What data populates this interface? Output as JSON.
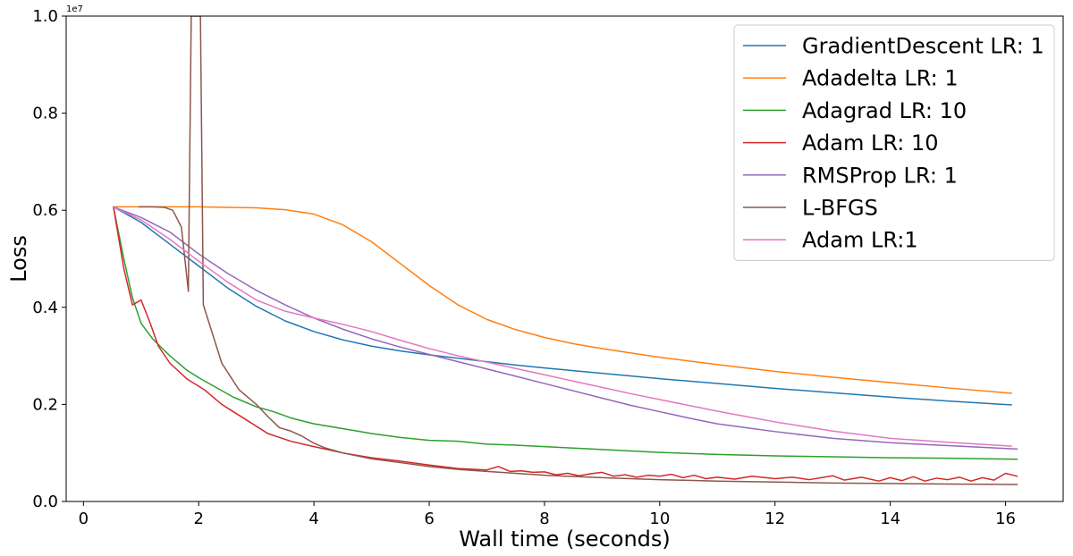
{
  "chart_data": {
    "type": "line",
    "xlabel": "Wall time (seconds)",
    "ylabel": "Loss",
    "y_offset_label": "1e7",
    "xlim": [
      -0.3,
      17.0
    ],
    "ylim": [
      0,
      1.0
    ],
    "x_ticks": [
      0,
      2,
      4,
      6,
      8,
      10,
      12,
      14,
      16
    ],
    "x_tick_labels": [
      "0",
      "2",
      "4",
      "6",
      "8",
      "10",
      "12",
      "14",
      "16"
    ],
    "y_ticks": [
      0.0,
      0.2,
      0.4,
      0.6,
      0.8,
      1.0
    ],
    "y_tick_labels": [
      "0.0",
      "0.2",
      "0.4",
      "0.6",
      "0.8",
      "1.0"
    ],
    "grid": false,
    "legend_position": "top-right",
    "series": [
      {
        "name": "GradientDescent LR: 1",
        "color": "#1f77b4",
        "points": [
          [
            0.52,
            0.607
          ],
          [
            1.0,
            0.575
          ],
          [
            1.5,
            0.53
          ],
          [
            2.0,
            0.485
          ],
          [
            2.5,
            0.44
          ],
          [
            3.0,
            0.402
          ],
          [
            3.5,
            0.372
          ],
          [
            4.0,
            0.35
          ],
          [
            4.5,
            0.333
          ],
          [
            5.0,
            0.32
          ],
          [
            5.5,
            0.31
          ],
          [
            6.0,
            0.302
          ],
          [
            6.5,
            0.295
          ],
          [
            7.0,
            0.288
          ],
          [
            7.5,
            0.281
          ],
          [
            8.0,
            0.275
          ],
          [
            9.0,
            0.264
          ],
          [
            10.0,
            0.253
          ],
          [
            11.0,
            0.243
          ],
          [
            12.0,
            0.233
          ],
          [
            13.0,
            0.224
          ],
          [
            14.0,
            0.215
          ],
          [
            15.0,
            0.207
          ],
          [
            16.1,
            0.199
          ]
        ]
      },
      {
        "name": "Adadelta LR: 1",
        "color": "#ff7f0e",
        "points": [
          [
            0.52,
            0.607
          ],
          [
            1.0,
            0.607
          ],
          [
            2.0,
            0.607
          ],
          [
            2.5,
            0.606
          ],
          [
            3.0,
            0.605
          ],
          [
            3.5,
            0.601
          ],
          [
            4.0,
            0.592
          ],
          [
            4.5,
            0.57
          ],
          [
            5.0,
            0.535
          ],
          [
            5.5,
            0.49
          ],
          [
            6.0,
            0.445
          ],
          [
            6.5,
            0.405
          ],
          [
            7.0,
            0.375
          ],
          [
            7.5,
            0.354
          ],
          [
            8.0,
            0.338
          ],
          [
            8.5,
            0.325
          ],
          [
            9.0,
            0.315
          ],
          [
            10.0,
            0.297
          ],
          [
            11.0,
            0.282
          ],
          [
            12.0,
            0.268
          ],
          [
            13.0,
            0.256
          ],
          [
            14.0,
            0.245
          ],
          [
            15.0,
            0.234
          ],
          [
            16.1,
            0.223
          ]
        ]
      },
      {
        "name": "Adagrad LR: 10",
        "color": "#2ca02c",
        "points": [
          [
            0.52,
            0.607
          ],
          [
            0.7,
            0.5
          ],
          [
            0.85,
            0.42
          ],
          [
            1.0,
            0.367
          ],
          [
            1.2,
            0.335
          ],
          [
            1.5,
            0.3
          ],
          [
            1.8,
            0.27
          ],
          [
            2.0,
            0.255
          ],
          [
            2.3,
            0.235
          ],
          [
            2.6,
            0.215
          ],
          [
            3.0,
            0.195
          ],
          [
            3.3,
            0.185
          ],
          [
            3.6,
            0.172
          ],
          [
            4.0,
            0.16
          ],
          [
            4.5,
            0.15
          ],
          [
            5.0,
            0.14
          ],
          [
            5.5,
            0.132
          ],
          [
            6.0,
            0.126
          ],
          [
            6.5,
            0.124
          ],
          [
            7.0,
            0.118
          ],
          [
            7.5,
            0.116
          ],
          [
            8.0,
            0.113
          ],
          [
            8.5,
            0.11
          ],
          [
            9.0,
            0.107
          ],
          [
            10.0,
            0.101
          ],
          [
            11.0,
            0.097
          ],
          [
            12.0,
            0.094
          ],
          [
            13.0,
            0.092
          ],
          [
            14.0,
            0.09
          ],
          [
            15.0,
            0.089
          ],
          [
            16.2,
            0.087
          ]
        ]
      },
      {
        "name": "Adam LR: 10",
        "color": "#d62728",
        "points": [
          [
            0.52,
            0.607
          ],
          [
            0.7,
            0.48
          ],
          [
            0.85,
            0.405
          ],
          [
            1.0,
            0.415
          ],
          [
            1.15,
            0.37
          ],
          [
            1.3,
            0.32
          ],
          [
            1.5,
            0.285
          ],
          [
            1.8,
            0.252
          ],
          [
            2.1,
            0.23
          ],
          [
            2.4,
            0.2
          ],
          [
            2.8,
            0.17
          ],
          [
            3.2,
            0.14
          ],
          [
            3.6,
            0.124
          ],
          [
            4.0,
            0.113
          ],
          [
            4.5,
            0.1
          ],
          [
            5.0,
            0.09
          ],
          [
            5.5,
            0.083
          ],
          [
            6.0,
            0.075
          ],
          [
            6.5,
            0.068
          ],
          [
            7.0,
            0.065
          ],
          [
            7.2,
            0.072
          ],
          [
            7.4,
            0.062
          ],
          [
            7.6,
            0.063
          ],
          [
            7.8,
            0.06
          ],
          [
            8.0,
            0.061
          ],
          [
            8.2,
            0.055
          ],
          [
            8.4,
            0.058
          ],
          [
            8.6,
            0.053
          ],
          [
            8.8,
            0.057
          ],
          [
            9.0,
            0.06
          ],
          [
            9.2,
            0.052
          ],
          [
            9.4,
            0.055
          ],
          [
            9.6,
            0.05
          ],
          [
            9.8,
            0.054
          ],
          [
            10.0,
            0.052
          ],
          [
            10.2,
            0.056
          ],
          [
            10.4,
            0.049
          ],
          [
            10.6,
            0.054
          ],
          [
            10.8,
            0.047
          ],
          [
            11.0,
            0.05
          ],
          [
            11.3,
            0.046
          ],
          [
            11.6,
            0.052
          ],
          [
            12.0,
            0.047
          ],
          [
            12.3,
            0.05
          ],
          [
            12.6,
            0.045
          ],
          [
            13.0,
            0.053
          ],
          [
            13.2,
            0.044
          ],
          [
            13.5,
            0.05
          ],
          [
            13.8,
            0.042
          ],
          [
            14.0,
            0.049
          ],
          [
            14.2,
            0.043
          ],
          [
            14.4,
            0.051
          ],
          [
            14.6,
            0.042
          ],
          [
            14.8,
            0.048
          ],
          [
            15.0,
            0.045
          ],
          [
            15.2,
            0.05
          ],
          [
            15.4,
            0.042
          ],
          [
            15.6,
            0.049
          ],
          [
            15.8,
            0.044
          ],
          [
            16.0,
            0.058
          ],
          [
            16.2,
            0.052
          ]
        ]
      },
      {
        "name": "RMSProp LR: 1",
        "color": "#9467bd",
        "points": [
          [
            0.52,
            0.607
          ],
          [
            1.0,
            0.585
          ],
          [
            1.5,
            0.555
          ],
          [
            2.0,
            0.51
          ],
          [
            2.5,
            0.47
          ],
          [
            3.0,
            0.435
          ],
          [
            3.5,
            0.405
          ],
          [
            4.0,
            0.378
          ],
          [
            4.5,
            0.355
          ],
          [
            5.0,
            0.335
          ],
          [
            5.5,
            0.318
          ],
          [
            6.0,
            0.303
          ],
          [
            6.5,
            0.288
          ],
          [
            7.0,
            0.273
          ],
          [
            7.5,
            0.258
          ],
          [
            8.0,
            0.243
          ],
          [
            8.5,
            0.228
          ],
          [
            9.0,
            0.213
          ],
          [
            9.5,
            0.198
          ],
          [
            10.0,
            0.185
          ],
          [
            10.5,
            0.172
          ],
          [
            11.0,
            0.16
          ],
          [
            11.5,
            0.152
          ],
          [
            12.0,
            0.144
          ],
          [
            13.0,
            0.13
          ],
          [
            14.0,
            0.121
          ],
          [
            15.0,
            0.115
          ],
          [
            16.2,
            0.108
          ]
        ]
      },
      {
        "name": "L-BFGS",
        "color": "#8c564b",
        "points": [
          [
            0.97,
            0.607
          ],
          [
            1.2,
            0.607
          ],
          [
            1.4,
            0.606
          ],
          [
            1.55,
            0.6
          ],
          [
            1.7,
            0.565
          ],
          [
            1.82,
            0.433
          ],
          [
            1.87,
            1.0
          ],
          [
            1.93,
            1.0
          ],
          [
            2.03,
            1.0
          ],
          [
            2.08,
            0.405
          ],
          [
            2.2,
            0.36
          ],
          [
            2.4,
            0.285
          ],
          [
            2.7,
            0.23
          ],
          [
            3.0,
            0.2
          ],
          [
            3.2,
            0.175
          ],
          [
            3.4,
            0.152
          ],
          [
            3.6,
            0.145
          ],
          [
            3.8,
            0.134
          ],
          [
            4.0,
            0.12
          ],
          [
            4.2,
            0.11
          ],
          [
            4.5,
            0.1
          ],
          [
            5.0,
            0.088
          ],
          [
            5.5,
            0.08
          ],
          [
            6.0,
            0.072
          ],
          [
            6.5,
            0.066
          ],
          [
            7.0,
            0.062
          ],
          [
            7.5,
            0.058
          ],
          [
            8.0,
            0.054
          ],
          [
            9.0,
            0.049
          ],
          [
            10.0,
            0.045
          ],
          [
            11.0,
            0.042
          ],
          [
            12.0,
            0.04
          ],
          [
            13.0,
            0.038
          ],
          [
            14.0,
            0.037
          ],
          [
            15.0,
            0.036
          ],
          [
            16.2,
            0.035
          ]
        ]
      },
      {
        "name": "Adam LR:1",
        "color": "#e377c2",
        "points": [
          [
            0.52,
            0.607
          ],
          [
            1.0,
            0.58
          ],
          [
            1.5,
            0.54
          ],
          [
            2.0,
            0.495
          ],
          [
            2.5,
            0.452
          ],
          [
            3.0,
            0.415
          ],
          [
            3.5,
            0.392
          ],
          [
            4.0,
            0.378
          ],
          [
            4.5,
            0.365
          ],
          [
            5.0,
            0.35
          ],
          [
            5.5,
            0.332
          ],
          [
            6.0,
            0.315
          ],
          [
            6.5,
            0.3
          ],
          [
            7.0,
            0.287
          ],
          [
            7.5,
            0.274
          ],
          [
            8.0,
            0.261
          ],
          [
            8.5,
            0.248
          ],
          [
            9.0,
            0.235
          ],
          [
            9.5,
            0.222
          ],
          [
            10.0,
            0.21
          ],
          [
            10.5,
            0.198
          ],
          [
            11.0,
            0.186
          ],
          [
            11.5,
            0.175
          ],
          [
            12.0,
            0.164
          ],
          [
            13.0,
            0.145
          ],
          [
            14.0,
            0.13
          ],
          [
            15.0,
            0.122
          ],
          [
            16.1,
            0.114
          ]
        ]
      }
    ]
  }
}
